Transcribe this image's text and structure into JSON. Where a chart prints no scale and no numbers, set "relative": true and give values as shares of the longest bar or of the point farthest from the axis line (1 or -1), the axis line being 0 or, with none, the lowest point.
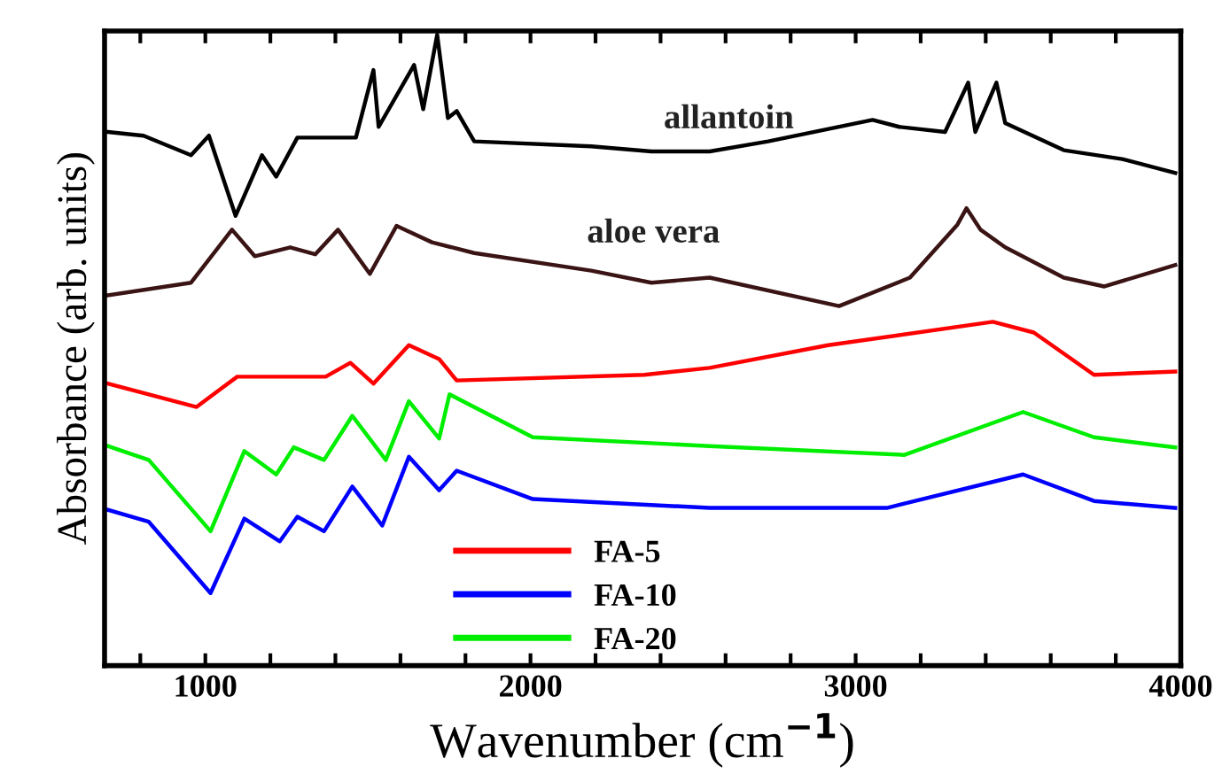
{
  "chart_data": {
    "type": "line",
    "relative": true,
    "xlabel": "Wavenumber (cm$^{−1}$)",
    "ylabel": "Absorbance (arb. units)",
    "xlim": [
      690,
      4000
    ],
    "xticks": [
      {
        "value": 800,
        "label": null
      },
      1000,
      {
        "value": 1200,
        "label": null
      },
      {
        "value": 1400,
        "label": null
      },
      {
        "value": 1600,
        "label": null
      },
      {
        "value": 1800,
        "label": null
      },
      2000,
      {
        "value": 2200,
        "label": null
      },
      {
        "value": 2400,
        "label": null
      },
      {
        "value": 2600,
        "label": null
      },
      {
        "value": 2800,
        "label": null
      },
      3000,
      {
        "value": 3200,
        "label": null
      },
      {
        "value": 3400,
        "label": null
      },
      {
        "value": 3600,
        "label": null
      },
      {
        "value": 3800,
        "label": null
      },
      4000
    ],
    "tick_labels": "x",
    "grid": false,
    "legend": "bottom",
    "marker": "none",
    "line_style": "solid",
    "series": [
      {
        "color": "#000000",
        "x": [
          700,
          810,
          956,
          1011,
          1093,
          1174,
          1218,
          1283,
          1463,
          1517,
          1533,
          1642,
          1670,
          1713,
          1746,
          1773,
          1827,
          2187,
          2372,
          2551,
          2731,
          3052,
          3134,
          3275,
          3346,
          3368,
          3433,
          3460,
          3640,
          3820,
          3983
        ],
        "values": [
          0.846,
          0.84,
          0.809,
          0.84,
          0.713,
          0.809,
          0.775,
          0.837,
          0.837,
          0.944,
          0.854,
          0.952,
          0.882,
          1.0,
          0.868,
          0.879,
          0.831,
          0.823,
          0.815,
          0.815,
          0.831,
          0.865,
          0.854,
          0.846,
          0.924,
          0.846,
          0.924,
          0.86,
          0.817,
          0.803,
          0.781
        ]
      },
      {
        "color": "#3a1414",
        "x": [
          700,
          956,
          1082,
          1152,
          1261,
          1338,
          1408,
          1506,
          1588,
          1697,
          1827,
          2187,
          2372,
          2551,
          2949,
          3167,
          3313,
          3341,
          3384,
          3460,
          3640,
          3765,
          3983
        ],
        "values": [
          0.587,
          0.607,
          0.691,
          0.649,
          0.663,
          0.652,
          0.691,
          0.621,
          0.697,
          0.671,
          0.654,
          0.626,
          0.607,
          0.615,
          0.57,
          0.615,
          0.699,
          0.725,
          0.691,
          0.663,
          0.615,
          0.601,
          0.635
        ]
      },
      {
        "name": "FA-5",
        "color": "#ff0000",
        "x": [
          700,
          973,
          1098,
          1370,
          1446,
          1517,
          1626,
          1719,
          1773,
          2350,
          2551,
          2916,
          3422,
          3548,
          3733,
          3983
        ],
        "values": [
          0.447,
          0.41,
          0.458,
          0.458,
          0.48,
          0.447,
          0.508,
          0.486,
          0.452,
          0.461,
          0.472,
          0.508,
          0.545,
          0.528,
          0.461,
          0.466
        ]
      },
      {
        "name": "FA-10",
        "color": "#0000ff",
        "x": [
          700,
          826,
          1016,
          1120,
          1229,
          1283,
          1365,
          1452,
          1544,
          1626,
          1719,
          1773,
          2007,
          2551,
          3096,
          3515,
          3733,
          3983
        ],
        "values": [
          0.247,
          0.228,
          0.115,
          0.233,
          0.197,
          0.236,
          0.213,
          0.284,
          0.222,
          0.331,
          0.278,
          0.309,
          0.264,
          0.25,
          0.25,
          0.303,
          0.261,
          0.25
        ]
      },
      {
        "name": "FA-20",
        "color": "#00ee00",
        "x": [
          700,
          826,
          1016,
          1120,
          1218,
          1272,
          1365,
          1452,
          1555,
          1626,
          1719,
          1751,
          2007,
          2551,
          3150,
          3515,
          3733,
          3983
        ],
        "values": [
          0.348,
          0.326,
          0.213,
          0.34,
          0.303,
          0.346,
          0.326,
          0.396,
          0.326,
          0.419,
          0.36,
          0.43,
          0.362,
          0.348,
          0.334,
          0.402,
          0.362,
          0.346
        ]
      }
    ],
    "annotations": [
      "allantoin",
      "aloe vera"
    ]
  }
}
